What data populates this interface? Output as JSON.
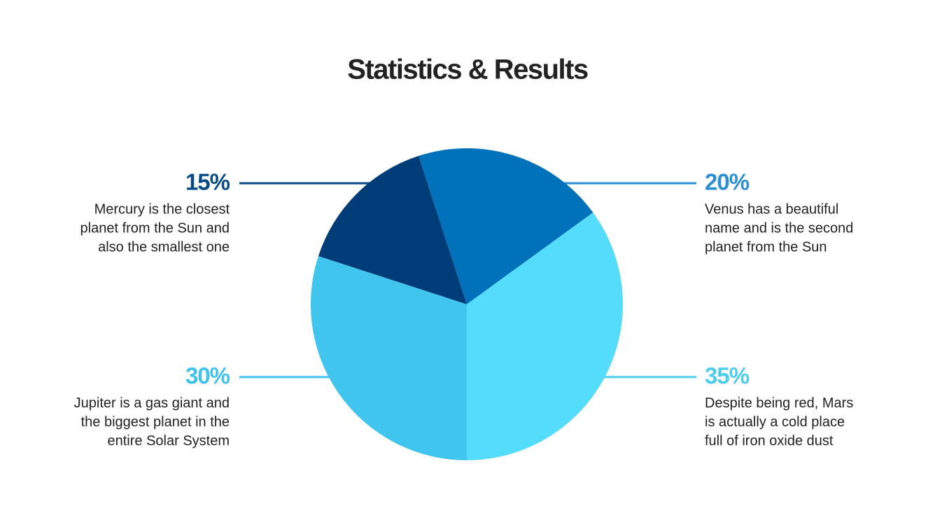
{
  "chart_data": {
    "type": "pie",
    "title": "Statistics & Results",
    "categories": [
      "Venus",
      "Mars",
      "Jupiter",
      "Mercury"
    ],
    "values": [
      20,
      35,
      30,
      15
    ],
    "value_labels": [
      "20%",
      "35%",
      "30%",
      "15%"
    ],
    "colors": [
      "#0072bc",
      "#54dcfc",
      "#40c5ef",
      "#003d78"
    ],
    "label_colors": [
      "#2b8fd6",
      "#4ccdee",
      "#3cc3ef",
      "#064b88"
    ],
    "descriptions": [
      [
        "Venus has a beautiful",
        "name and is the second",
        "planet from the Sun"
      ],
      [
        "Despite being red, Mars",
        "is actually a cold place",
        "full of iron oxide dust"
      ],
      [
        "Jupiter is a gas giant and",
        "the biggest planet in the",
        "entire Solar System"
      ],
      [
        "Mercury is the closest",
        "planet from the Sun and",
        "also the smallest one"
      ]
    ]
  }
}
